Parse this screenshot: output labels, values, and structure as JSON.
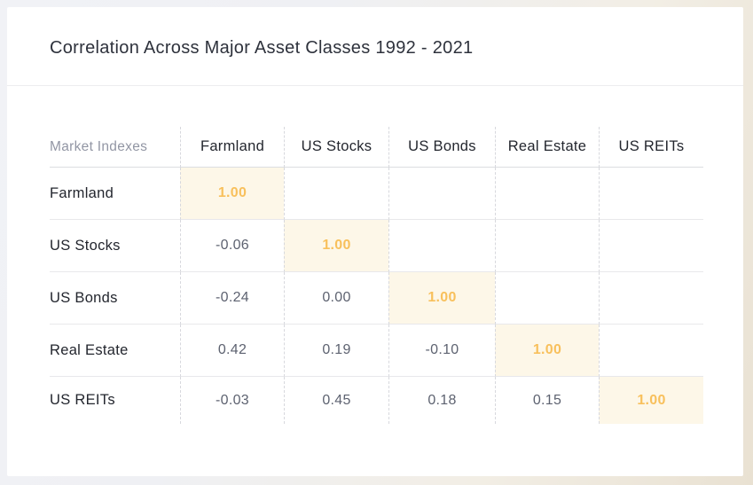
{
  "card": {
    "title": "Correlation Across Major Asset Classes 1992 - 2021"
  },
  "table": {
    "corner_label": "Market Indexes",
    "columns": [
      "Farmland",
      "US Stocks",
      "US Bonds",
      "Real Estate",
      "US REITs"
    ],
    "rows": [
      {
        "label": "Farmland",
        "values": [
          "1.00",
          "",
          "",
          "",
          ""
        ]
      },
      {
        "label": "US Stocks",
        "values": [
          "-0.06",
          "1.00",
          "",
          "",
          ""
        ]
      },
      {
        "label": "US Bonds",
        "values": [
          "-0.24",
          "0.00",
          "1.00",
          "",
          ""
        ]
      },
      {
        "label": "Real Estate",
        "values": [
          "0.42",
          "0.19",
          "-0.10",
          "1.00",
          ""
        ]
      },
      {
        "label": "US REITs",
        "values": [
          "-0.03",
          "0.45",
          "0.18",
          "0.15",
          "1.00"
        ]
      }
    ]
  },
  "colors": {
    "highlight_background": "#fdf7e8",
    "highlight_text": "#f8c05c",
    "value_text": "#5d6270",
    "label_text": "#23262e",
    "muted_label_text": "#9296a4"
  },
  "chart_data": {
    "type": "table",
    "subtype": "correlation-matrix",
    "title": "Correlation Across Major Asset Classes 1992 - 2021",
    "row_header_label": "Market Indexes",
    "columns": [
      "Farmland",
      "US Stocks",
      "US Bonds",
      "Real Estate",
      "US REITs"
    ],
    "rows": [
      "Farmland",
      "US Stocks",
      "US Bonds",
      "Real Estate",
      "US REITs"
    ],
    "matrix": [
      [
        1.0,
        null,
        null,
        null,
        null
      ],
      [
        -0.06,
        1.0,
        null,
        null,
        null
      ],
      [
        -0.24,
        0.0,
        1.0,
        null,
        null
      ],
      [
        0.42,
        0.19,
        -0.1,
        1.0,
        null
      ],
      [
        -0.03,
        0.45,
        0.18,
        0.15,
        1.0
      ]
    ],
    "layout_hints": {
      "shape": "lower-triangular",
      "diagonal_highlighted": true,
      "column_separators": "dashed",
      "row_separators": "solid"
    }
  }
}
